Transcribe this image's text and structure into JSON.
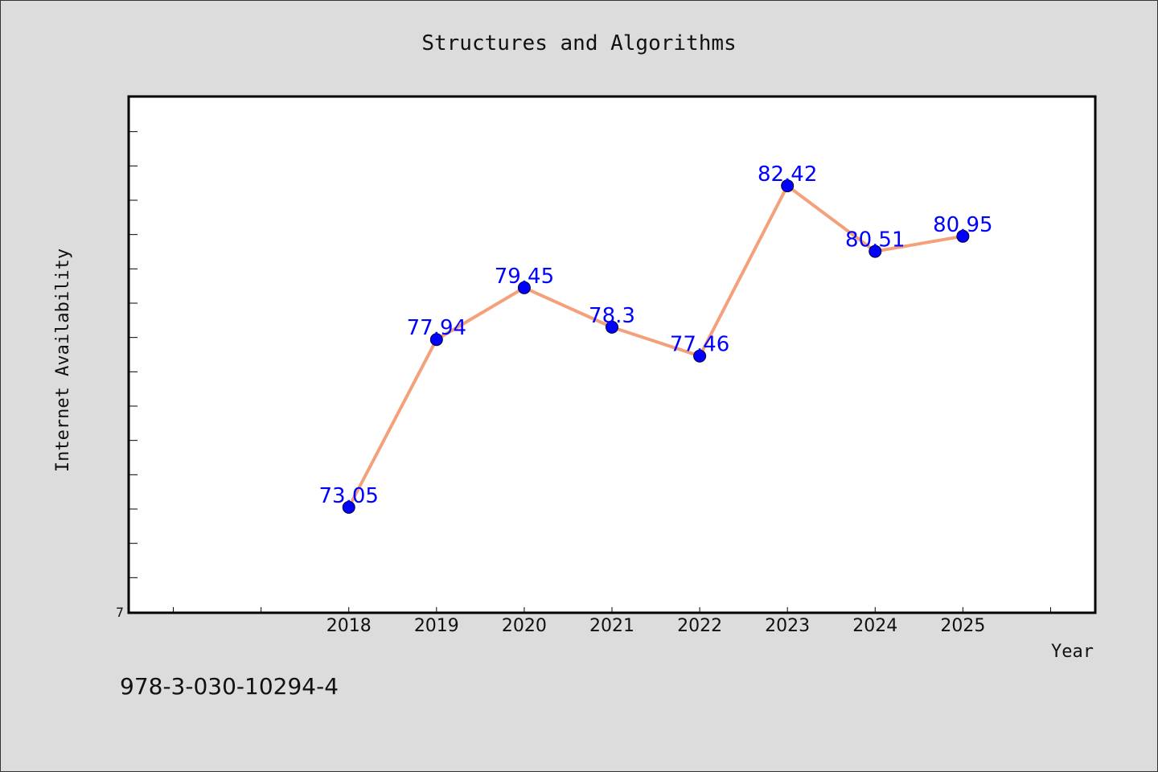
{
  "chart_data": {
    "type": "line",
    "title": "Structures and Algorithms",
    "xlabel": "Year",
    "ylabel": "Internet Availability",
    "x": [
      "2018",
      "2019",
      "2020",
      "2021",
      "2022",
      "2023",
      "2024",
      "2025"
    ],
    "series": [
      {
        "values": [
          73.05,
          77.94,
          79.45,
          78.3,
          77.46,
          82.42,
          80.51,
          80.95
        ],
        "labels": [
          "73.05",
          "77.94",
          "79.45",
          "78.3",
          "77.46",
          "82.42",
          "80.51",
          "80.95"
        ]
      }
    ],
    "y_tick_labels": [
      "7"
    ],
    "ylim": [
      70,
      85
    ],
    "xlim": [
      2015.5,
      2026.5
    ],
    "grid": false,
    "colors": {
      "line": "#f4a07a",
      "marker": "#0000ff",
      "label": "#0000ff",
      "background": "#dcdcdc",
      "plot_area": "#ffffff"
    }
  },
  "footer_text": "978-3-030-10294-4"
}
